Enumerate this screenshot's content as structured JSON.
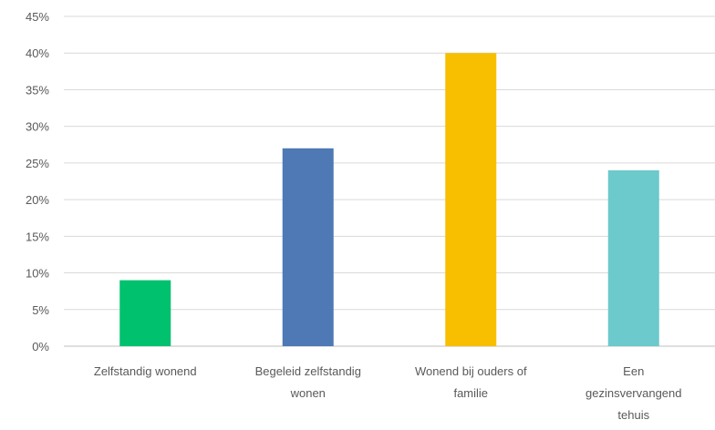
{
  "chart_data": {
    "type": "bar",
    "categories": [
      [
        "Zelfstandig wonend"
      ],
      [
        "Begeleid zelfstandig",
        "wonen"
      ],
      [
        "Wonend bij ouders of",
        "familie"
      ],
      [
        "Een",
        "gezinsvervangend",
        "tehuis"
      ]
    ],
    "values": [
      9,
      27,
      40,
      24
    ],
    "colors": [
      "#00c16e",
      "#4e79b5",
      "#f8bf00",
      "#6cc9cc"
    ],
    "yticks": [
      "0%",
      "5%",
      "10%",
      "15%",
      "20%",
      "25%",
      "30%",
      "35%",
      "40%",
      "45%"
    ],
    "ylim": [
      0,
      45
    ],
    "grid": true,
    "title": "",
    "xlabel": "",
    "ylabel": ""
  },
  "style": {
    "grid_color": "#d9d9d9",
    "text_color": "#595959"
  }
}
